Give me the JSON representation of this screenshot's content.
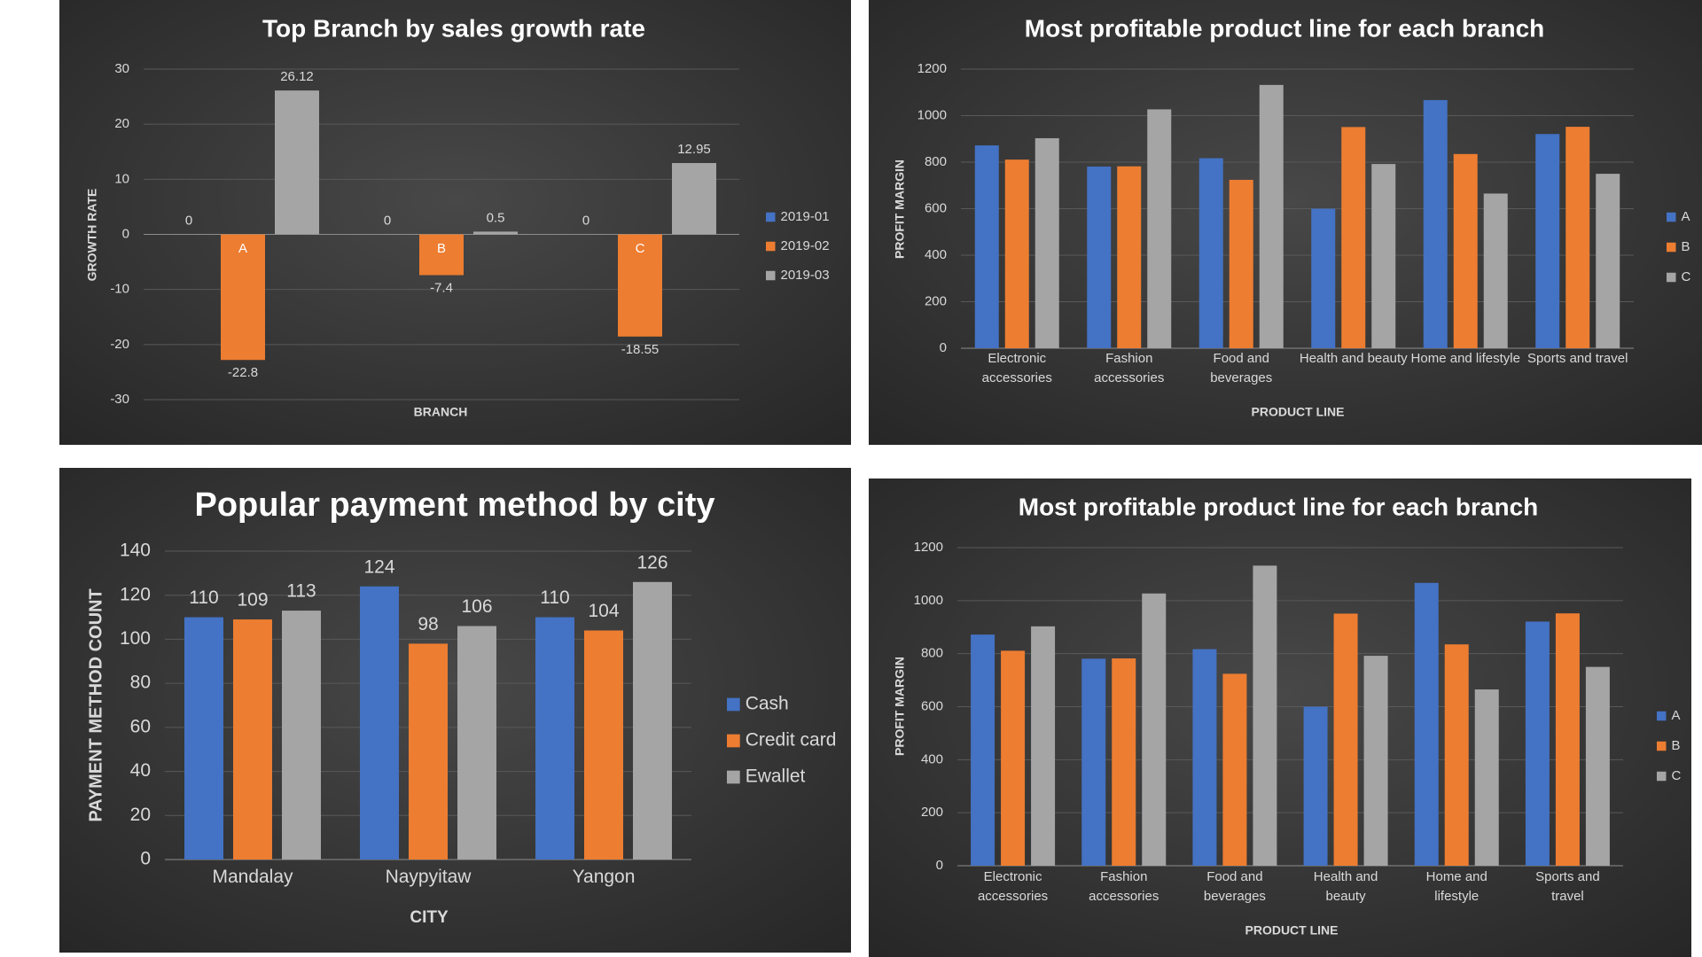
{
  "chart_data": [
    {
      "type": "bar",
      "title": "Top Branch by sales growth rate",
      "x_label": "BRANCH",
      "y_label": "GROWTH RATE",
      "categories": [
        "A",
        "B",
        "C"
      ],
      "series": [
        {
          "name": "2019-01",
          "color": "#4472c4",
          "values": [
            0,
            0,
            0
          ]
        },
        {
          "name": "2019-02",
          "color": "#ed7d31",
          "values": [
            -22.8,
            -7.4,
            -18.55
          ]
        },
        {
          "name": "2019-03",
          "color": "#a5a5a5",
          "values": [
            26.12,
            0.5,
            12.95
          ]
        }
      ],
      "ylim": [
        -30,
        30
      ],
      "yticks": [
        -30,
        -20,
        -10,
        0,
        10,
        20,
        30
      ],
      "grid": true,
      "legend": "right",
      "data_labels": true
    },
    {
      "type": "bar",
      "title": "Most profitable product line for each branch",
      "x_label": "PRODUCT LINE",
      "y_label": "PROFIT MARGIN",
      "categories": [
        "Electronic accessories",
        "Fashion accessories",
        "Food and beverages",
        "Health and beauty",
        "Home and lifestyle",
        "Sports and travel"
      ],
      "series": [
        {
          "name": "A",
          "color": "#4472c4",
          "values": [
            872,
            781,
            817,
            600,
            1067,
            921
          ]
        },
        {
          "name": "B",
          "color": "#ed7d31",
          "values": [
            811,
            782,
            724,
            951,
            835,
            952
          ]
        },
        {
          "name": "C",
          "color": "#a5a5a5",
          "values": [
            903,
            1027,
            1132,
            792,
            665,
            750
          ]
        }
      ],
      "ylim": [
        0,
        1200
      ],
      "yticks": [
        0,
        200,
        400,
        600,
        800,
        1000,
        1200
      ],
      "grid": true,
      "legend": "right",
      "data_labels": false
    },
    {
      "type": "bar",
      "title": "Popular payment method by city",
      "x_label": "CITY",
      "y_label": "PAYMENT METHOD COUNT",
      "categories": [
        "Mandalay",
        "Naypyitaw",
        "Yangon"
      ],
      "series": [
        {
          "name": "Cash",
          "color": "#4472c4",
          "values": [
            110,
            124,
            110
          ]
        },
        {
          "name": "Credit card",
          "color": "#ed7d31",
          "values": [
            109,
            98,
            104
          ]
        },
        {
          "name": "Ewallet",
          "color": "#a5a5a5",
          "values": [
            113,
            106,
            126
          ]
        }
      ],
      "ylim": [
        0,
        140
      ],
      "yticks": [
        0,
        20,
        40,
        60,
        80,
        100,
        120,
        140
      ],
      "grid": true,
      "legend": "right",
      "data_labels": true
    },
    {
      "type": "bar",
      "title": "Most profitable product line for each branch",
      "x_label": "PRODUCT LINE",
      "y_label": "PROFIT MARGIN",
      "categories": [
        "Electronic accessories",
        "Fashion accessories",
        "Food and beverages",
        "Health and beauty",
        "Home and lifestyle",
        "Sports and travel"
      ],
      "series": [
        {
          "name": "A",
          "color": "#4472c4",
          "values": [
            872,
            781,
            817,
            600,
            1067,
            921
          ]
        },
        {
          "name": "B",
          "color": "#ed7d31",
          "values": [
            811,
            782,
            724,
            951,
            835,
            952
          ]
        },
        {
          "name": "C",
          "color": "#a5a5a5",
          "values": [
            903,
            1027,
            1132,
            792,
            665,
            750
          ]
        }
      ],
      "ylim": [
        0,
        1200
      ],
      "yticks": [
        0,
        200,
        400,
        600,
        800,
        1000,
        1200
      ],
      "grid": true,
      "legend": "right",
      "data_labels": false
    }
  ]
}
